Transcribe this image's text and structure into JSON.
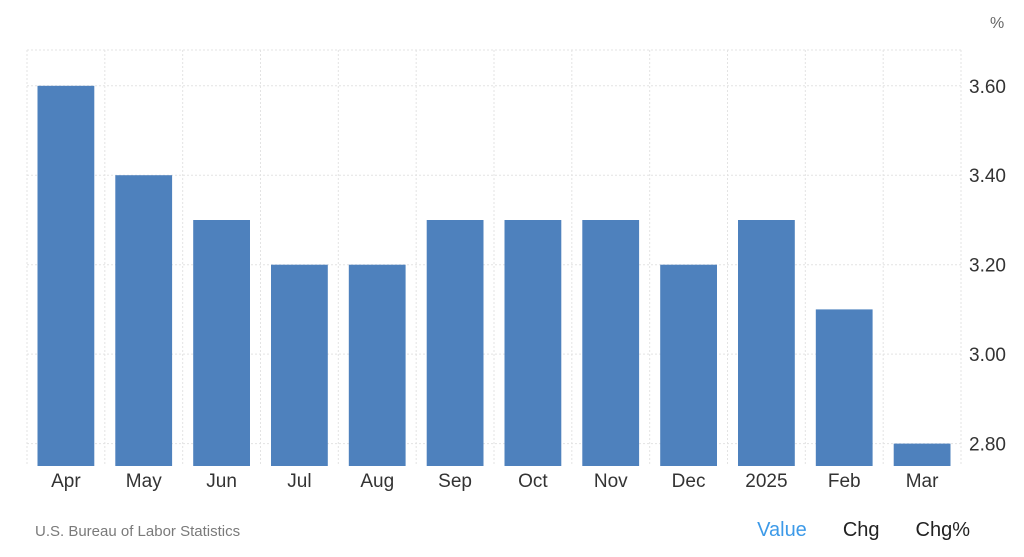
{
  "chart_data": {
    "type": "bar",
    "categories": [
      "Apr",
      "May",
      "Jun",
      "Jul",
      "Aug",
      "Sep",
      "Oct",
      "Nov",
      "Dec",
      "2025",
      "Feb",
      "Mar"
    ],
    "values": [
      3.6,
      3.4,
      3.3,
      3.2,
      3.2,
      3.3,
      3.3,
      3.3,
      3.2,
      3.3,
      3.1,
      2.8
    ],
    "unit": "%",
    "ylim": [
      2.75,
      3.68
    ],
    "yticks": [
      "3.60",
      "3.40",
      "3.20",
      "3.00",
      "2.80"
    ],
    "ytick_values": [
      3.6,
      3.4,
      3.2,
      3.0,
      2.8
    ],
    "y_axis_side": "right",
    "grid": true,
    "bar_color": "#4e81bd"
  },
  "footer": {
    "source": "U.S. Bureau of Labor Statistics",
    "toggles": [
      {
        "label": "Value",
        "active": true
      },
      {
        "label": "Chg",
        "active": false
      },
      {
        "label": "Chg%",
        "active": false
      }
    ],
    "active_color": "#3d9ae8"
  }
}
